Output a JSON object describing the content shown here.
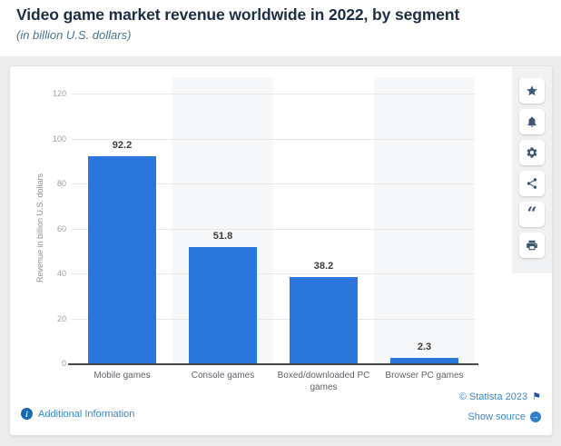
{
  "header": {
    "title": "Video game market revenue worldwide in 2022, by segment",
    "subtitle": "(in billion U.S. dollars)"
  },
  "chart_data": {
    "type": "bar",
    "title": "Video game market revenue worldwide in 2022, by segment",
    "subtitle": "(in billion U.S. dollars)",
    "categories": [
      "Mobile games",
      "Console games",
      "Boxed/downloaded PC games",
      "Browser PC games"
    ],
    "values": [
      92.2,
      51.8,
      38.2,
      2.3
    ],
    "value_labels": [
      "92.2",
      "51.8",
      "38.2",
      "2.3"
    ],
    "xlabel": "",
    "ylabel": "Revenue in billion U.S. dollars",
    "yticks": [
      0,
      20,
      40,
      60,
      80,
      100,
      120
    ],
    "ylim": [
      0,
      120
    ],
    "grid": true,
    "legend": false,
    "bar_color": "#2a76dd",
    "alternating_band_color": "#f6f7f8"
  },
  "toolbar": {
    "icons": [
      "favorite-star",
      "notifications-bell",
      "settings-gear",
      "share-nodes",
      "cite-quote",
      "print-printer"
    ]
  },
  "footer": {
    "additional_info": "Additional Information",
    "copyright": "© Statista 2023",
    "show_source": "Show source"
  },
  "colors": {
    "bar": "#2a76dd",
    "link_blue": "#3c87c9",
    "title_navy": "#1d2d42",
    "page_background": "#ececec"
  }
}
